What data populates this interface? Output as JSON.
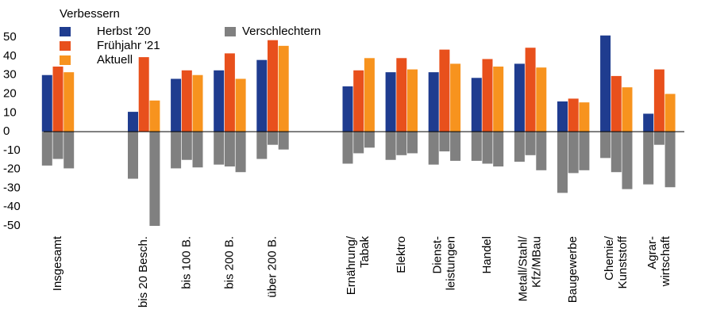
{
  "chart_data": {
    "type": "bar",
    "legend_title": "Verbessern",
    "categories": [
      "Insgesamt",
      null,
      "bis 20 Besch.",
      "bis 100 B.",
      "bis 200 B.",
      "über 200 B.",
      null,
      [
        "Ernährung/",
        "Tabak"
      ],
      "Elektro",
      [
        "Dienst-",
        "leistungen"
      ],
      "Handel",
      [
        "Metall/Stahl/",
        "Kfz/MBau"
      ],
      "Baugewerbe",
      [
        "Chemie/",
        "Kunststoff"
      ],
      [
        "Agrar-",
        "wirtschaft"
      ]
    ],
    "series": [
      {
        "name": "Herbst '20",
        "color": "#1f3c8f",
        "values": [
          30,
          null,
          10.5,
          28,
          32.5,
          38,
          null,
          24,
          31.5,
          31.5,
          28.5,
          36,
          16,
          51,
          9.5
        ]
      },
      {
        "name": "Frühjahr '21",
        "color": "#e8501c",
        "values": [
          34.5,
          null,
          39.5,
          32.5,
          41.5,
          48.5,
          null,
          32.5,
          39,
          43.5,
          38.5,
          44.5,
          17.5,
          29.5,
          33
        ]
      },
      {
        "name": "Aktuell",
        "color": "#f7931e",
        "values": [
          31.5,
          null,
          16.5,
          30,
          28,
          45.5,
          null,
          39,
          33,
          36,
          34.5,
          34,
          15.5,
          23.5,
          20
        ]
      }
    ],
    "negative": {
      "name": "Verschlechtern",
      "color": "#808080",
      "values": [
        [
          -18,
          -14.5,
          -19.5
        ],
        null,
        [
          -25,
          null,
          -50
        ],
        [
          -19.5,
          -15,
          -19
        ],
        [
          -17.5,
          -18.5,
          -21.5
        ],
        [
          -14.5,
          -7,
          -9.5
        ],
        null,
        [
          -17,
          -11.5,
          -8.5
        ],
        [
          -15,
          -12.5,
          -11.5
        ],
        [
          -17.5,
          -10.5,
          -15.5
        ],
        [
          -15.5,
          -17,
          -18.5
        ],
        [
          -16,
          -12.5,
          -20.5
        ],
        [
          -32.5,
          -22,
          -20.5
        ],
        [
          -14,
          -21.5,
          -30.5
        ],
        [
          -28,
          -7,
          -29.5
        ]
      ]
    },
    "ylim": [
      -50,
      53
    ],
    "yticks": [
      -50,
      -40,
      -30,
      -20,
      -10,
      0,
      10,
      20,
      30,
      40,
      50
    ],
    "negative_tick_color": "#e00000",
    "grid": false
  }
}
